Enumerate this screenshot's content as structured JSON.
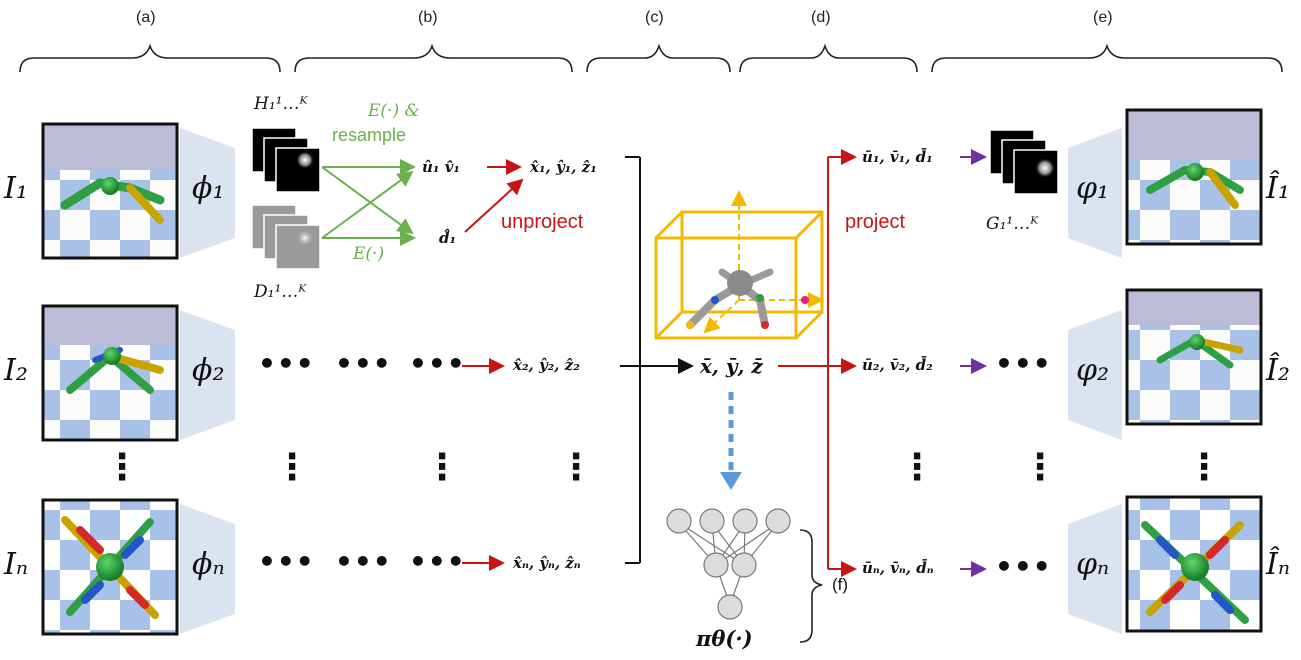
{
  "sections": [
    "(a)",
    "(b)",
    "(c)",
    "(d)",
    "(e)",
    "(f)"
  ],
  "inputs": [
    "I₁",
    "I₂",
    "Iₙ"
  ],
  "encoders": [
    "ϕ₁",
    "ϕ₂",
    "ϕₙ"
  ],
  "decoders": [
    "φ₁",
    "φ₂",
    "φₙ"
  ],
  "outputs": [
    "Î₁",
    "Î₂",
    "Îₙ"
  ],
  "heatmaps": {
    "H": "H₁¹…ᴷ",
    "D": "D₁¹…ᴷ",
    "G": "G₁¹…ᴷ"
  },
  "labels": {
    "expectation_resample_1": "E(·) &",
    "expectation_resample_2": "resample",
    "expectation": "E(·)",
    "unproject": "unproject",
    "project": "project"
  },
  "math": {
    "uv1": "û₁ v̂₁",
    "d1": "d̂₁",
    "xyz1": "x̂₁, ŷ₁, ẑ₁",
    "xyz2": "x̂₂, ŷ₂, ẑ₂",
    "xyzn": "x̂ₙ, ŷₙ, ẑₙ",
    "mean": "x̄, ȳ, z̄",
    "uvd1": "ū₁, v̄₁, d̄₁",
    "uvd2": "ū₂, v̄₂, d̄₂",
    "uvdn": "ūₙ, v̄ₙ, d̄ₙ",
    "policy": "πθ(·)"
  },
  "ellipsis": {
    "h": "•••",
    "v": "⋮"
  },
  "colors": {
    "green": "#6ab04c",
    "red": "#c81414",
    "purple": "#7030a0",
    "cube": "#f5b800",
    "blue_dash": "#5b9bd5",
    "trapezoid": "#dbe3f0"
  }
}
